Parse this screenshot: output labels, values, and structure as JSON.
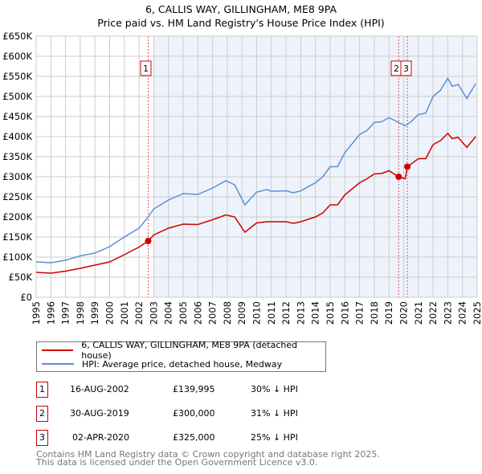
{
  "title": "6, CALLIS WAY, GILLINGHAM, ME8 9PA",
  "subtitle": "Price paid vs. HM Land Registry's House Price Index (HPI)",
  "colors": {
    "property": "#cc0000",
    "hpi": "#5b8fd4",
    "shade": "#eef3fb"
  },
  "chart_data": {
    "type": "line",
    "title": "6, CALLIS WAY, GILLINGHAM, ME8 9PA — Price paid vs. HM Land Registry's House Price Index (HPI)",
    "xlim": [
      1995,
      2025
    ],
    "ylim": [
      0,
      650000
    ],
    "yticks": [
      "£0",
      "£50K",
      "£100K",
      "£150K",
      "£200K",
      "£250K",
      "£300K",
      "£350K",
      "£400K",
      "£450K",
      "£500K",
      "£550K",
      "£600K",
      "£650K"
    ],
    "xticks": [
      "1995",
      "1996",
      "1997",
      "1998",
      "1999",
      "2000",
      "2001",
      "2002",
      "2003",
      "2004",
      "2005",
      "2006",
      "2007",
      "2008",
      "2009",
      "2010",
      "2011",
      "2012",
      "2013",
      "2014",
      "2015",
      "2016",
      "2017",
      "2018",
      "2019",
      "2020",
      "2021",
      "2022",
      "2023",
      "2024",
      "2025"
    ],
    "series": [
      {
        "name": "6, CALLIS WAY, GILLINGHAM, ME8 9PA (detached house)",
        "color": "#cc0000",
        "x": [
          1995,
          1996,
          1997,
          1998,
          1999,
          2000,
          2001,
          2002,
          2002.62,
          2003,
          2004,
          2005,
          2006,
          2007,
          2007.9,
          2008.5,
          2009.2,
          2010,
          2010.7,
          2011,
          2012,
          2012.5,
          2013,
          2014,
          2014.5,
          2015,
          2015.5,
          2016,
          2017,
          2017.5,
          2018,
          2018.5,
          2019,
          2019.66,
          2020.1,
          2020.25,
          2021,
          2021.5,
          2022,
          2022.5,
          2023,
          2023.3,
          2023.7,
          2024.3,
          2024.9
        ],
        "y": [
          62,
          60,
          65,
          72,
          80,
          88,
          106,
          125,
          140,
          155,
          172,
          182,
          181,
          193,
          205,
          200,
          162,
          185,
          188,
          188,
          188,
          184,
          188,
          200,
          210,
          230,
          230,
          255,
          285,
          295,
          307,
          308,
          315,
          300,
          295,
          325,
          345,
          345,
          380,
          390,
          408,
          395,
          398,
          373,
          400
        ]
      },
      {
        "name": "HPI: Average price, detached house, Medway",
        "color": "#5b8fd4",
        "x": [
          1995,
          1996,
          1997,
          1998,
          1999,
          2000,
          2001,
          2002,
          2002.62,
          2003,
          2004,
          2005,
          2006,
          2007,
          2007.9,
          2008.5,
          2009.2,
          2010,
          2010.7,
          2011,
          2012,
          2012.5,
          2013,
          2014,
          2014.5,
          2015,
          2015.5,
          2016,
          2017,
          2017.5,
          2018,
          2018.5,
          2019,
          2019.66,
          2020.1,
          2020.5,
          2021,
          2021.5,
          2022,
          2022.5,
          2023,
          2023.3,
          2023.7,
          2024.3,
          2024.9
        ],
        "y": [
          88,
          86,
          92,
          103,
          110,
          126,
          150,
          172,
          200,
          220,
          242,
          258,
          256,
          272,
          290,
          280,
          230,
          262,
          268,
          264,
          265,
          260,
          265,
          285,
          300,
          325,
          325,
          360,
          405,
          415,
          435,
          437,
          447,
          435,
          427,
          437,
          455,
          458,
          500,
          515,
          545,
          525,
          530,
          495,
          532
        ]
      }
    ],
    "y_units": "£ thousands",
    "sales": [
      {
        "label": "1",
        "x": 2002.62,
        "y": 139.995
      },
      {
        "label": "2",
        "x": 2019.66,
        "y": 300
      },
      {
        "label": "3",
        "x": 2020.25,
        "y": 325
      }
    ],
    "shaded_from": 2003.0,
    "legend": "below"
  },
  "legend": [
    {
      "label": "6, CALLIS WAY, GILLINGHAM, ME8 9PA (detached house)"
    },
    {
      "label": "HPI: Average price, detached house, Medway"
    }
  ],
  "transactions": [
    {
      "num": "1",
      "date": "16-AUG-2002",
      "price": "£139,995",
      "hpi": "30% ↓ HPI"
    },
    {
      "num": "2",
      "date": "30-AUG-2019",
      "price": "£300,000",
      "hpi": "31% ↓ HPI"
    },
    {
      "num": "3",
      "date": "02-APR-2020",
      "price": "£325,000",
      "hpi": "25% ↓ HPI"
    }
  ],
  "footer": [
    "Contains HM Land Registry data © Crown copyright and database right 2025.",
    "This data is licensed under the Open Government Licence v3.0."
  ]
}
